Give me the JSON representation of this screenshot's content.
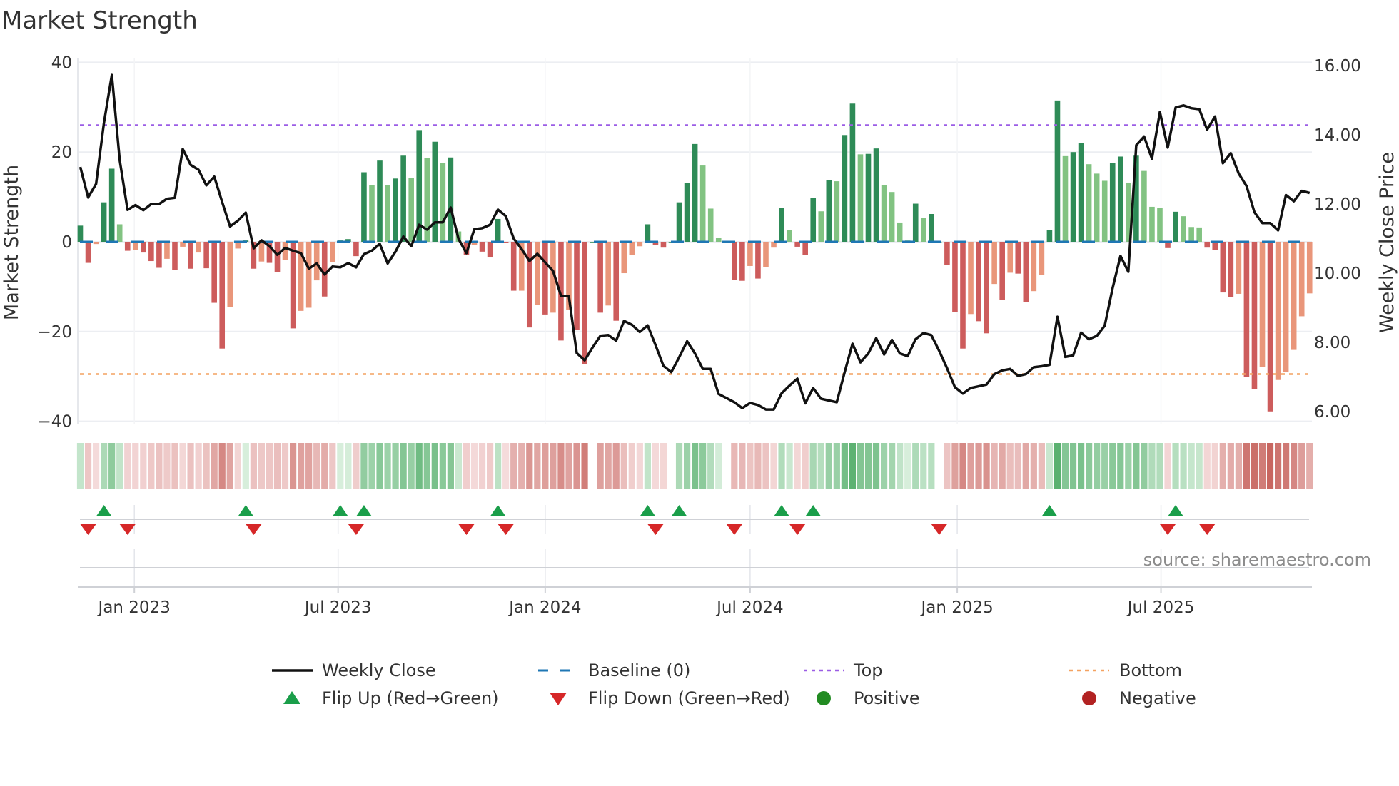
{
  "chart_data": {
    "type": "bar",
    "title": "Market Strength",
    "ylabel": "Market Strength",
    "y2label": "Weekly Close Price",
    "ylim": [
      -40,
      40
    ],
    "y2lim": [
      6,
      16
    ],
    "y_ticks": [
      "40",
      "20",
      "0",
      "−20",
      "−40"
    ],
    "y_tick_values": [
      40,
      20,
      0,
      -20,
      -40
    ],
    "y2_ticks": [
      "16.00",
      "14.00",
      "12.00",
      "10.00",
      "8.00",
      "6.00"
    ],
    "y2_tick_values": [
      16,
      14,
      12,
      10,
      8,
      6
    ],
    "x_ticks": [
      {
        "label": "Jan 2023",
        "date": "2023-01-01"
      },
      {
        "label": "Jul 2023",
        "date": "2023-07-01"
      },
      {
        "label": "Jan 2024",
        "date": "2024-01-01"
      },
      {
        "label": "Jul 2024",
        "date": "2024-07-01"
      },
      {
        "label": "Jan 2025",
        "date": "2025-01-01"
      },
      {
        "label": "Jul 2025",
        "date": "2025-07-01"
      }
    ],
    "start_date": "2022-11-14",
    "interval_days": 7,
    "top_level": 26,
    "bottom_level": -29.5,
    "baseline": 0,
    "strength": [
      3.6,
      -4.7,
      -0.5,
      8.8,
      16.3,
      3.9,
      -2,
      -1.8,
      -2.4,
      -4.3,
      -5.8,
      -3.8,
      -6.2,
      -1.1,
      -6,
      -2.4,
      -5.9,
      -13.6,
      -23.8,
      -14.5,
      -1.5,
      0.3,
      -6,
      -4.4,
      -4.7,
      -6.8,
      -4.1,
      -19.3,
      -15.4,
      -14.7,
      -8.6,
      -12.2,
      -4.6,
      0.3,
      0.6,
      -3.2,
      15.5,
      12.7,
      18.1,
      12.7,
      14.1,
      19.2,
      14.2,
      24.9,
      18.6,
      22.3,
      17.5,
      18.8,
      2.3,
      -3,
      -0.7,
      -2.2,
      -3.5,
      5.1,
      -0.3,
      -10.9,
      -10.9,
      -19.1,
      -14,
      -16.2,
      -15.8,
      -22,
      -15.1,
      -19.6,
      -27.2,
      0,
      -15.8,
      -14.2,
      -17.6,
      -7,
      -2.9,
      -1,
      3.9,
      -0.7,
      -1.3,
      0,
      8.8,
      13.1,
      21.8,
      17,
      7.4,
      0.9,
      0,
      -8.5,
      -8.7,
      -5.4,
      -8.2,
      -5.6,
      -1.3,
      7.6,
      2.6,
      -1.1,
      -3,
      9.8,
      6.8,
      13.8,
      13.5,
      23.8,
      30.8,
      19.5,
      19.6,
      20.8,
      12.7,
      11.1,
      4.3,
      0.3,
      8.5,
      5.3,
      6.2,
      0,
      -5.2,
      -15.6,
      -23.8,
      -16.1,
      -17.7,
      -20.4,
      -9.4,
      -13,
      -6.9,
      -7.1,
      -13.4,
      -11,
      -7.4,
      2.7,
      31.5,
      19.1,
      20,
      22,
      17.3,
      15.2,
      13.6,
      17.5,
      19,
      13.2,
      19.2,
      15.8,
      7.8,
      7.6,
      -1.4,
      6.7,
      5.7,
      3.3,
      3.2,
      -1.3,
      -1.9,
      -11.3,
      -12.3,
      -11.6,
      -30.1,
      -32.8,
      -27.9,
      -37.8,
      -30.8,
      -29,
      -24.1,
      -16.6,
      -11.5
    ],
    "weekly_close": [
      13.07,
      12.19,
      12.58,
      14.34,
      15.73,
      13.27,
      11.83,
      11.97,
      11.82,
      12.0,
      12.0,
      12.15,
      12.18,
      13.59,
      13.13,
      12.99,
      12.54,
      12.79,
      12.06,
      11.35,
      11.52,
      11.75,
      10.72,
      10.95,
      10.78,
      10.53,
      10.73,
      10.65,
      10.58,
      10.13,
      10.28,
      9.96,
      10.19,
      10.17,
      10.29,
      10.17,
      10.55,
      10.65,
      10.85,
      10.28,
      10.62,
      11.06,
      10.78,
      11.4,
      11.26,
      11.47,
      11.47,
      11.9,
      10.99,
      10.58,
      11.27,
      11.3,
      11.4,
      11.84,
      11.65,
      11.0,
      10.7,
      10.35,
      10.56,
      10.31,
      10.06,
      9.35,
      9.33,
      7.69,
      7.48,
      7.85,
      8.19,
      8.21,
      8.05,
      8.62,
      8.51,
      8.3,
      8.49,
      7.92,
      7.32,
      7.14,
      7.57,
      8.03,
      7.68,
      7.23,
      7.23,
      6.51,
      6.39,
      6.27,
      6.1,
      6.25,
      6.19,
      6.06,
      6.06,
      6.53,
      6.75,
      6.95,
      6.24,
      6.68,
      6.37,
      6.32,
      6.27,
      7.14,
      7.96,
      7.42,
      7.68,
      8.12,
      7.65,
      8.07,
      7.68,
      7.6,
      8.09,
      8.27,
      8.21,
      7.75,
      7.25,
      6.7,
      6.52,
      6.68,
      6.73,
      6.78,
      7.08,
      7.19,
      7.23,
      7.03,
      7.08,
      7.28,
      7.31,
      7.35,
      8.74,
      7.58,
      7.62,
      8.28,
      8.09,
      8.19,
      8.48,
      9.56,
      10.5,
      10.04,
      13.7,
      13.95,
      13.31,
      14.66,
      13.63,
      14.79,
      14.85,
      14.77,
      14.74,
      14.15,
      14.53,
      13.18,
      13.47,
      12.88,
      12.52,
      11.76,
      11.45,
      11.45,
      11.24,
      12.26,
      12.08,
      12.38,
      12.32
    ],
    "flip_up_indices": [
      3,
      21,
      33,
      36,
      53,
      72,
      76,
      89,
      93,
      123,
      139
    ],
    "flip_down_indices": [
      1,
      6,
      22,
      35,
      49,
      54,
      73,
      83,
      91,
      109,
      138,
      143
    ],
    "legend": [
      {
        "label": "Weekly Close",
        "symbol": "line"
      },
      {
        "label": "Baseline (0)",
        "symbol": "dashed"
      },
      {
        "label": "Top",
        "symbol": "dotted"
      },
      {
        "label": "Bottom",
        "symbol": "dotted"
      },
      {
        "label": "Flip Up (Red→Green)",
        "symbol": "triangle-up"
      },
      {
        "label": "Flip Down (Green→Red)",
        "symbol": "triangle-down"
      },
      {
        "label": "Positive",
        "symbol": "dot"
      },
      {
        "label": "Negative",
        "symbol": "dot"
      }
    ],
    "legend_position": "bottom",
    "grid": true
  },
  "colors": {
    "pos_rising": "#2e8b57",
    "pos_falling": "#82c382",
    "neg_falling": "#cd5c5c",
    "neg_rising": "#e9967a",
    "price_line": "#111111",
    "baseline": "#1f77b4",
    "top": "#9b5de5",
    "bottom": "#f4a261",
    "flip_up": "#1a9e4a",
    "flip_down": "#d62728",
    "positive": "#228b22",
    "negative": "#b22222"
  },
  "source": "source: sharemaestro.com"
}
